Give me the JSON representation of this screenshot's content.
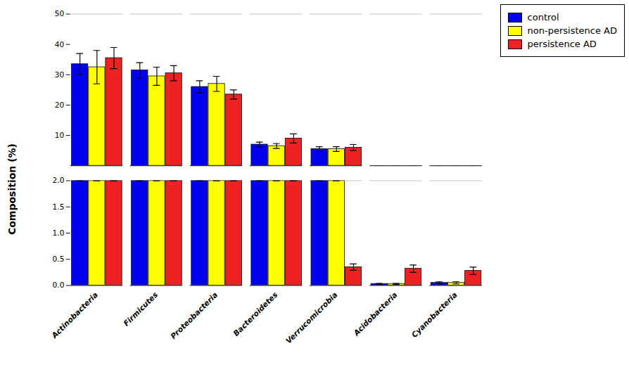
{
  "chart_data": [
    {
      "type": "bar",
      "categories": [
        "Actinobacteria",
        "Firmicutes",
        "Proteobacteria",
        "Bacteroidetes",
        "Verrucomicrobia",
        "Acidobacteria",
        "Cyanobacteria"
      ],
      "series": [
        {
          "name": "control",
          "color": "#0000EE",
          "values": [
            33.5,
            31.5,
            26.0,
            7.0,
            5.5,
            0.0,
            0.0
          ],
          "errors": [
            3.5,
            2.5,
            2.0,
            0.8,
            0.8,
            0.0,
            0.0
          ]
        },
        {
          "name": "non-persistence AD",
          "color": "#FFFF00",
          "values": [
            32.5,
            29.5,
            27.0,
            6.5,
            5.5,
            0.0,
            0.0
          ],
          "errors": [
            5.5,
            3.0,
            2.5,
            0.8,
            0.8,
            0.0,
            0.0
          ]
        },
        {
          "name": "persistence AD",
          "color": "#EE2222",
          "values": [
            35.5,
            30.5,
            23.5,
            9.0,
            6.0,
            0.0,
            0.0
          ],
          "errors": [
            3.5,
            2.5,
            1.5,
            1.5,
            1.0,
            0.0,
            0.0
          ]
        }
      ],
      "ylabel": "Composition (%)",
      "ylim": [
        0,
        50
      ],
      "yticks": [
        10,
        20,
        30,
        40,
        50
      ],
      "tick_labels": "y",
      "legend": "upper right"
    },
    {
      "type": "bar",
      "categories": [
        "Actinobacteria",
        "Firmicutes",
        "Proteobacteria",
        "Bacteroidetes",
        "Verrucomicrobia",
        "Acidobacteria",
        "Cyanobacteria"
      ],
      "series": [
        {
          "name": "control",
          "color": "#0000EE",
          "values": [
            2.0,
            2.0,
            2.0,
            2.0,
            2.0,
            0.03,
            0.05
          ],
          "errors": [
            0.0,
            0.0,
            0.0,
            0.0,
            0.0,
            0.01,
            0.02
          ]
        },
        {
          "name": "non-persistence AD",
          "color": "#FFFF00",
          "values": [
            2.0,
            2.0,
            2.0,
            2.0,
            2.0,
            0.03,
            0.05
          ],
          "errors": [
            0.0,
            0.0,
            0.0,
            0.0,
            0.0,
            0.01,
            0.02
          ]
        },
        {
          "name": "persistence AD",
          "color": "#EE2222",
          "values": [
            2.0,
            2.0,
            2.0,
            2.0,
            0.35,
            0.32,
            0.28
          ],
          "errors": [
            0.0,
            0.0,
            0.0,
            0.0,
            0.06,
            0.07,
            0.07
          ]
        }
      ],
      "ylim": [
        0.0,
        2.0
      ],
      "yticks": [
        {
          "value": 0.0,
          "label": "0.0"
        },
        {
          "value": 0.5,
          "label": "0.5"
        },
        {
          "value": 1.0,
          "label": "1.0"
        },
        {
          "value": 1.5,
          "label": "1.5"
        },
        {
          "value": 2.0,
          "label": "2.0"
        }
      ]
    }
  ]
}
